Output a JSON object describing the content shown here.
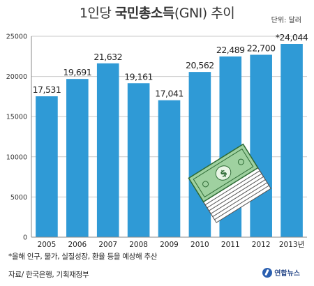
{
  "header": {
    "title_prefix": "1인당 ",
    "title_bold": "국민총소득",
    "title_suffix": "(GNI) 추이",
    "unit": "단위: 달러"
  },
  "footer": {
    "note": "*올해 인구, 물가, 실질성장, 환율 등을 예상해 추산",
    "source": "자료/ 한국은행, 기획재정부",
    "logo_text": "연합뉴스"
  },
  "illustration": {
    "icon": "money-stack-icon"
  },
  "chart_data": {
    "type": "bar",
    "categories": [
      "2005",
      "2006",
      "2007",
      "2008",
      "2009",
      "2010",
      "2011",
      "2012",
      "2013년"
    ],
    "values": [
      17531,
      19691,
      21632,
      19161,
      17041,
      20562,
      22489,
      22700,
      24044
    ],
    "data_labels": [
      "17,531",
      "19,691",
      "21,632",
      "19,161",
      "17,041",
      "20,562",
      "22,489",
      "22,700",
      "*24,044"
    ],
    "title": "1인당 국민총소득(GNI) 추이",
    "xlabel": "",
    "ylabel": "",
    "ylim": [
      0,
      25000
    ],
    "yticks": [
      0,
      5000,
      10000,
      15000,
      20000,
      25000
    ],
    "grid": true,
    "bar_color": "#2f9ad6",
    "grid_color": "#c9c9c9"
  }
}
